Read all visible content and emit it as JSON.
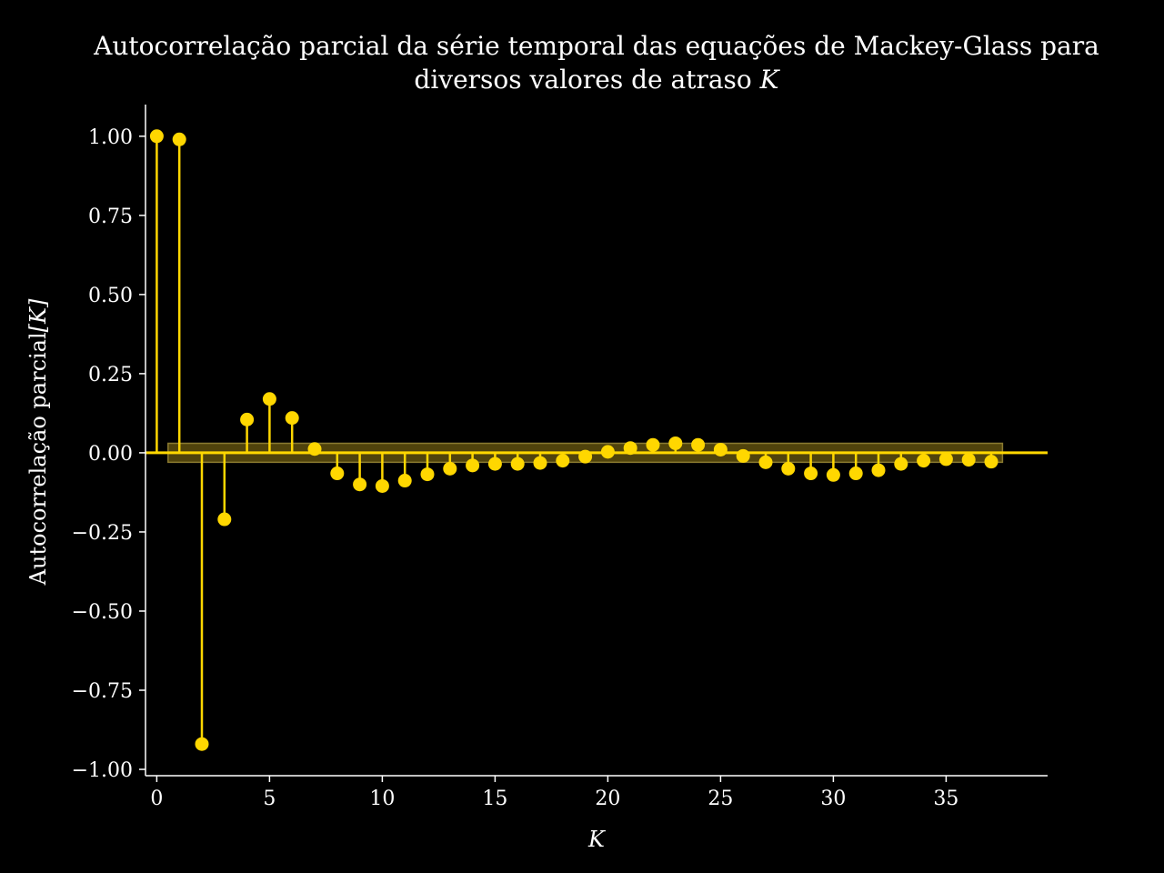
{
  "chart_data": {
    "type": "stem",
    "title_line1": "Autocorrelação parcial da série temporal das equações de Mackey-Glass para",
    "title_line2_prefix": "diversos valores de atraso ",
    "title_line2_var": "K",
    "xlabel": "K",
    "ylabel_prefix": "Autocorrelação parcial",
    "ylabel_var": "[K]",
    "xlim": [
      -0.5,
      39.5
    ],
    "ylim": [
      -1.02,
      1.1
    ],
    "xticks": [
      0,
      5,
      10,
      15,
      20,
      25,
      30,
      35
    ],
    "yticks": [
      1.0,
      0.75,
      0.5,
      0.25,
      0.0,
      -0.25,
      -0.5,
      -0.75,
      -1.0
    ],
    "ytick_labels": [
      "1.00",
      "0.75",
      "0.50",
      "0.25",
      "0.00",
      "−0.25",
      "−0.50",
      "−0.75",
      "−1.00"
    ],
    "confidence_band": {
      "x_start": 0.5,
      "x_end": 37.5,
      "lower": -0.03,
      "upper": 0.03
    },
    "color": "#FFD700",
    "band_color": "#6b5a10",
    "series": [
      {
        "x": [
          0,
          1,
          2,
          3,
          4,
          5,
          6,
          7,
          8,
          9,
          10,
          11,
          12,
          13,
          14,
          15,
          16,
          17,
          18,
          19,
          20,
          21,
          22,
          23,
          24,
          25,
          26,
          27,
          28,
          29,
          30,
          31,
          32,
          33,
          34,
          35,
          36,
          37
        ],
        "values": [
          1.0,
          0.99,
          -0.92,
          -0.21,
          0.105,
          0.17,
          0.11,
          0.012,
          -0.065,
          -0.1,
          -0.105,
          -0.088,
          -0.068,
          -0.05,
          -0.04,
          -0.035,
          -0.035,
          -0.032,
          -0.025,
          -0.012,
          0.003,
          0.015,
          0.025,
          0.03,
          0.025,
          0.01,
          -0.01,
          -0.03,
          -0.05,
          -0.065,
          -0.07,
          -0.065,
          -0.055,
          -0.035,
          -0.025,
          -0.02,
          -0.022,
          -0.028
        ]
      }
    ]
  }
}
